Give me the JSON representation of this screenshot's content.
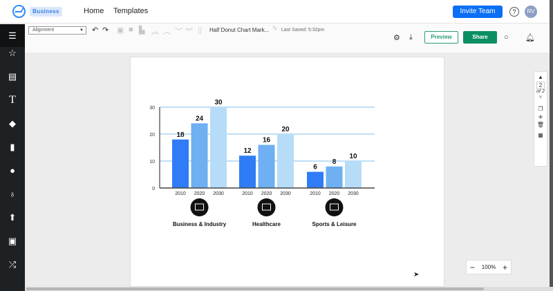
{
  "header": {
    "badge": "Business",
    "nav": [
      "Home",
      "Templates"
    ],
    "invite_label": "Invite Team",
    "help": "?",
    "avatar": "RV"
  },
  "toolbar": {
    "alignment": "Alignment",
    "doc_title": "Half Donut Chart Mark...",
    "last_saved": "Last Saved: 5:32pm",
    "preview": "Preview",
    "share": "Share"
  },
  "pages": {
    "current": "2",
    "of": "of 2"
  },
  "zoom": {
    "level": "100%",
    "minus": "−",
    "plus": "+"
  },
  "chart_data": {
    "type": "bar",
    "categories": [
      "Business & Industry",
      "Healthcare",
      "Sports & Leisure"
    ],
    "series": [
      {
        "name": "2010",
        "values": [
          18,
          12,
          6
        ],
        "color": "#2f7cf6"
      },
      {
        "name": "2020",
        "values": [
          24,
          16,
          8
        ],
        "color": "#6eb0f2"
      },
      {
        "name": "2030",
        "values": [
          30,
          20,
          10
        ],
        "color": "#b7dcf8"
      }
    ],
    "yticks": [
      0,
      10,
      20,
      30
    ],
    "ylim": [
      0,
      30
    ],
    "grid": true
  }
}
